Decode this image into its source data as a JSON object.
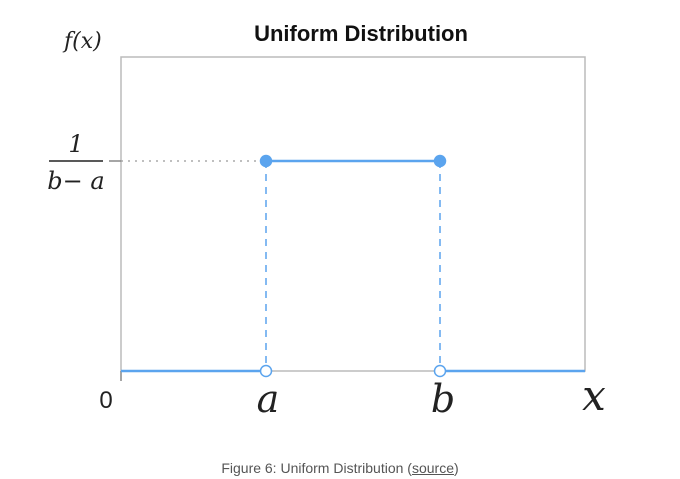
{
  "chart_data": {
    "type": "line",
    "title": "Uniform Distribution",
    "ylabel": "f(x)",
    "xlabel": "x",
    "x_tick_labels": [
      "0",
      "a",
      "b"
    ],
    "y_tick_labels": {
      "numerator": "1",
      "denominator": "b− a"
    },
    "x": [
      0,
      1,
      1,
      2,
      2,
      3
    ],
    "series": [
      {
        "values": [
          0,
          0,
          1,
          1,
          0,
          0
        ]
      }
    ],
    "points": [
      {
        "x": 1,
        "y": 1,
        "filled": true
      },
      {
        "x": 2,
        "y": 1,
        "filled": true
      },
      {
        "x": 1,
        "y": 0,
        "filled": false
      },
      {
        "x": 2,
        "y": 0,
        "filled": false
      }
    ],
    "xlim": [
      0,
      3.2
    ],
    "ylim": [
      0,
      2
    ],
    "grid": false,
    "colors": {
      "line": "#5ba4ee",
      "axis": "#bbbbbb",
      "dotted": "#999999"
    }
  },
  "caption": {
    "prefix": "Figure 6: Uniform Distribution (",
    "link_text": "source",
    "suffix": ")"
  }
}
